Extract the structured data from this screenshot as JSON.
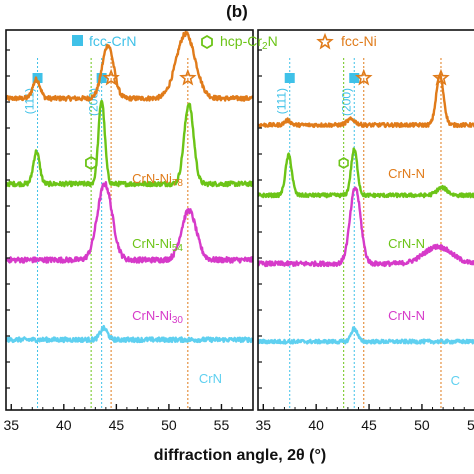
{
  "chart_data": {
    "type": "line",
    "panel_label": "(b)",
    "xlabel": "diffraction angle, 2θ (°)",
    "xlim": [
      34.5,
      58
    ],
    "xticks": [
      35,
      40,
      45,
      50,
      55
    ],
    "legend": {
      "placement": "top",
      "entries": [
        {
          "label": "fcc-CrN",
          "marker": "square",
          "color": "#3fc1e8"
        },
        {
          "label": "hcp-Cr2N",
          "marker": "hexagon",
          "color": "#6cc417"
        },
        {
          "label": "fcc-Ni",
          "marker": "star",
          "color": "#e07b1a"
        }
      ]
    },
    "reference_lines": [
      {
        "name": "fcc-CrN (111)",
        "x": 37.5,
        "color": "#3fc1e8",
        "hkl": "(111)",
        "marker": "square"
      },
      {
        "name": "fcc-CrN (200)",
        "x": 43.6,
        "color": "#3fc1e8",
        "hkl": "(200)",
        "marker": "square"
      },
      {
        "name": "hcp-Cr2N",
        "x": 42.6,
        "color": "#6cc417",
        "marker": "hexagon"
      },
      {
        "name": "fcc-Ni (111)",
        "x": 44.5,
        "color": "#e07b1a",
        "marker": "star"
      },
      {
        "name": "fcc-Ni (200)",
        "x": 51.8,
        "color": "#e07b1a",
        "marker": "star"
      }
    ],
    "panels": [
      {
        "name": "left",
        "series": [
          {
            "name": "CrN-Ni78",
            "color": "#e07b1a",
            "label_base": "CrN-Ni",
            "label_sub": "78",
            "baseline": 0.82,
            "noise": 0.006,
            "peaks": [
              {
                "x": 37.4,
                "h": 0.05,
                "w": 0.35
              },
              {
                "x": 44.2,
                "h": 0.14,
                "w": 0.55
              },
              {
                "x": 51.6,
                "h": 0.17,
                "w": 0.9
              }
            ]
          },
          {
            "name": "CrN-Ni54",
            "color": "#6cc417",
            "label_base": "CrN-Ni",
            "label_sub": "54",
            "baseline": 0.595,
            "noise": 0.006,
            "peaks": [
              {
                "x": 37.4,
                "h": 0.085,
                "w": 0.3
              },
              {
                "x": 43.6,
                "h": 0.22,
                "w": 0.3
              },
              {
                "x": 51.9,
                "h": 0.21,
                "w": 0.45
              }
            ]
          },
          {
            "name": "CrN-Ni30",
            "color": "#d63ac9",
            "label_base": "CrN-Ni",
            "label_sub": "30",
            "baseline": 0.395,
            "noise": 0.007,
            "peaks": [
              {
                "x": 43.9,
                "h": 0.2,
                "w": 0.7
              },
              {
                "x": 51.9,
                "h": 0.13,
                "w": 0.7
              }
            ]
          },
          {
            "name": "CrN",
            "color": "#5fd0f0",
            "label_base": "CrN",
            "label_sub": "",
            "baseline": 0.185,
            "noise": 0.006,
            "peaks": [
              {
                "x": 43.8,
                "h": 0.03,
                "w": 0.35
              }
            ]
          }
        ]
      },
      {
        "name": "right",
        "series": [
          {
            "name": "CrN-Ni",
            "color": "#e07b1a",
            "label_base": "CrN-N",
            "label_sub": "",
            "baseline": 0.75,
            "noise": 0.005,
            "peaks": [
              {
                "x": 37.3,
                "h": 0.012,
                "w": 0.3
              },
              {
                "x": 43.3,
                "h": 0.015,
                "w": 0.4
              },
              {
                "x": 51.7,
                "h": 0.13,
                "w": 0.35
              }
            ]
          },
          {
            "name": "CrN-Ni",
            "color": "#6cc417",
            "label_base": "CrN-N",
            "label_sub": "",
            "baseline": 0.565,
            "noise": 0.005,
            "peaks": [
              {
                "x": 37.4,
                "h": 0.105,
                "w": 0.3
              },
              {
                "x": 43.6,
                "h": 0.12,
                "w": 0.3
              },
              {
                "x": 51.9,
                "h": 0.02,
                "w": 0.5
              }
            ]
          },
          {
            "name": "CrN-Ni",
            "color": "#d63ac9",
            "label_base": "CrN-N",
            "label_sub": "",
            "baseline": 0.385,
            "noise": 0.006,
            "peaks": [
              {
                "x": 43.7,
                "h": 0.2,
                "w": 0.5
              },
              {
                "x": 51.5,
                "h": 0.045,
                "w": 1.3
              }
            ]
          },
          {
            "name": "CrN",
            "color": "#5fd0f0",
            "label_base": "C",
            "label_sub": "",
            "baseline": 0.18,
            "noise": 0.005,
            "peaks": [
              {
                "x": 43.6,
                "h": 0.035,
                "w": 0.3
              }
            ]
          }
        ]
      }
    ]
  }
}
